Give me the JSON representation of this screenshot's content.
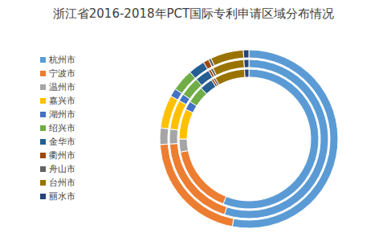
{
  "chart_data": {
    "type": "pie",
    "title": "浙江省2016-2018年PCT国际专利申请区域分布情况",
    "categories": [
      "杭州市",
      "宁波市",
      "温州市",
      "嘉兴市",
      "湖州市",
      "绍兴市",
      "金华市",
      "衢州市",
      "舟山市",
      "台州市",
      "丽水市"
    ],
    "colors": [
      "#5b9bd5",
      "#ed7d31",
      "#a5a5a5",
      "#ffc000",
      "#4472c4",
      "#70ad47",
      "#255e91",
      "#9e480e",
      "#636363",
      "#997300",
      "#264478"
    ],
    "series": [
      {
        "values": [
          56,
          16,
          3,
          7,
          2,
          4,
          3,
          0.5,
          0.5,
          7,
          1
        ]
      },
      {
        "values": [
          55,
          19,
          3,
          6,
          1.5,
          4,
          3,
          0.5,
          0.5,
          6.5,
          1
        ]
      },
      {
        "values": [
          53,
          21,
          3,
          6,
          1.5,
          4,
          3,
          1,
          0.5,
          6,
          1
        ]
      }
    ],
    "legend": "left"
  }
}
